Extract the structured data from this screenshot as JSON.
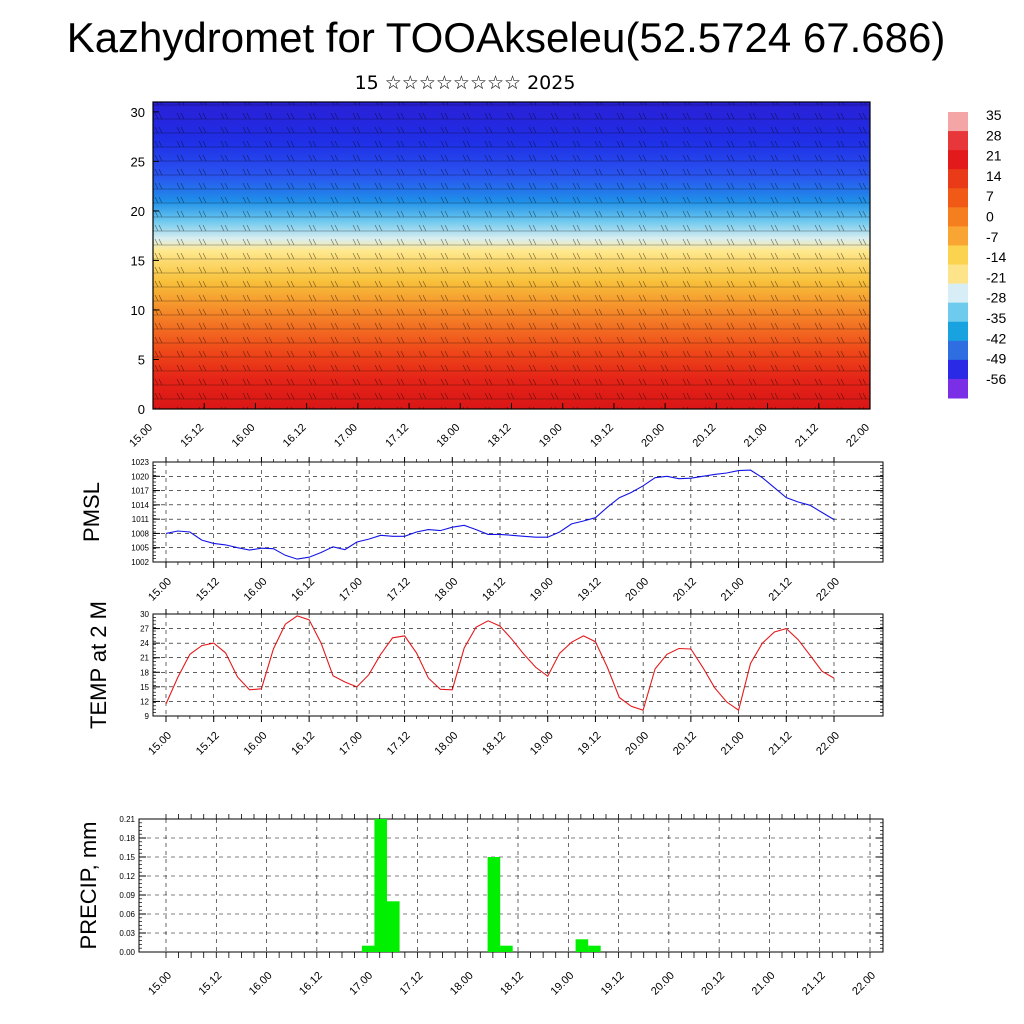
{
  "header": {
    "title": "Kazhydromet for TOOAkseleu(52.5724 67.686)",
    "subtitle": "15 ☆☆☆☆☆☆☆☆ 2025"
  },
  "colorbar": {
    "labels": [
      "35",
      "28",
      "21",
      "14",
      "7",
      "0",
      "-7",
      "-14",
      "-21",
      "-28",
      "-35",
      "-42",
      "-49",
      "-56"
    ],
    "colors_top_to_bottom": [
      "#f4a6a6",
      "#e8373a",
      "#e31a1c",
      "#ea3b18",
      "#f05a16",
      "#f57f1f",
      "#f9a533",
      "#fbd34f",
      "#fde48a",
      "#d7eef6",
      "#6fcbed",
      "#18a2df",
      "#2e6ee0",
      "#2a2ae6",
      "#7a2ee6"
    ]
  },
  "chart_data": [
    {
      "type": "heatmap",
      "description_source": "cross-section temperature with wind barbs",
      "x_tick_labels": [
        "15.00",
        "15.12",
        "16.00",
        "16.12",
        "17.00",
        "17.12",
        "18.00",
        "18.12",
        "19.00",
        "19.12",
        "20.00",
        "20.12",
        "21.00",
        "21.12",
        "22.00"
      ],
      "y_tick_labels": [
        "0",
        "5",
        "10",
        "15",
        "20",
        "25",
        "30"
      ],
      "ylim": [
        0,
        31
      ],
      "color_levels_top_to_bottom": [
        {
          "level": 31,
          "color": "#2a1fd6"
        },
        {
          "level": 27,
          "color": "#1f2fe6"
        },
        {
          "level": 23.5,
          "color": "#2a55f0"
        },
        {
          "level": 21,
          "color": "#1f8fe8"
        },
        {
          "level": 19,
          "color": "#6cc8ef"
        },
        {
          "level": 17.2,
          "color": "#d9eef0"
        },
        {
          "level": 16,
          "color": "#ffe98f"
        },
        {
          "level": 13,
          "color": "#f8c23c"
        },
        {
          "level": 10,
          "color": "#f58c2a"
        },
        {
          "level": 6,
          "color": "#ef4a19"
        },
        {
          "level": 3,
          "color": "#e52418"
        },
        {
          "level": 0,
          "color": "#d91616"
        }
      ]
    },
    {
      "type": "line",
      "ylabel": "PMSL",
      "y_tick_labels": [
        "1023",
        "1020",
        "1017",
        "1014",
        "1011",
        "1008",
        "1005",
        "1002"
      ],
      "ylim": [
        1002,
        1023
      ],
      "x_tick_labels": [
        "15.00",
        "15.12",
        "16.00",
        "16.12",
        "17.00",
        "17.12",
        "18.00",
        "18.12",
        "19.00",
        "19.12",
        "20.00",
        "20.12",
        "21.00",
        "21.12",
        "22.00"
      ],
      "line_color": "#1414e6",
      "values": [
        1008,
        1008.5,
        1008.3,
        1006.6,
        1005.9,
        1005.6,
        1005,
        1004.5,
        1004.9,
        1004.8,
        1003.4,
        1002.6,
        1003,
        1004,
        1005.2,
        1004.6,
        1006.2,
        1006.8,
        1007.6,
        1007.4,
        1007.4,
        1008.3,
        1008.8,
        1008.6,
        1009.3,
        1009.7,
        1008.8,
        1007.8,
        1007.8,
        1007.6,
        1007.4,
        1007.2,
        1007.2,
        1008.3,
        1010,
        1010.6,
        1011.3,
        1013.5,
        1015.5,
        1016.6,
        1018,
        1019.7,
        1020,
        1019.5,
        1019.6,
        1020,
        1020.4,
        1020.7,
        1021.2,
        1021.3,
        1019.7,
        1017.6,
        1015.5,
        1014.6,
        1013.9,
        1012.4,
        1010.9
      ]
    },
    {
      "type": "line",
      "ylabel": "TEMP at 2 M",
      "y_tick_labels": [
        "30",
        "27",
        "24",
        "21",
        "18",
        "15",
        "12",
        "9"
      ],
      "ylim": [
        9,
        30
      ],
      "x_tick_labels": [
        "15.00",
        "15.12",
        "16.00",
        "16.12",
        "17.00",
        "17.12",
        "18.00",
        "18.12",
        "19.00",
        "19.12",
        "20.00",
        "20.12",
        "21.00",
        "21.12",
        "22.00"
      ],
      "line_color": "#e31a1c",
      "values": [
        11.5,
        17,
        21.7,
        23.5,
        24,
        22,
        17,
        14.4,
        14.6,
        22.8,
        27.9,
        29.6,
        28.8,
        24,
        17.3,
        16,
        15,
        17.5,
        21.7,
        25.1,
        25.5,
        22,
        16.8,
        14.5,
        14.4,
        23,
        27.3,
        28.6,
        27.5,
        24.8,
        21.7,
        19,
        17.2,
        21.9,
        24.2,
        25.5,
        24.3,
        19,
        12.8,
        11,
        10.2,
        18.7,
        21.7,
        22.9,
        22.8,
        19,
        14.8,
        11.9,
        10.2,
        19.8,
        24,
        26.3,
        27,
        24.7,
        21.5,
        18.2,
        16.8
      ]
    },
    {
      "type": "bar",
      "ylabel": "PRECIP, mm",
      "y_tick_labels": [
        "0.21",
        "0.18",
        "0.15",
        "0.12",
        "0.09",
        "0.06",
        "0.03",
        "0.00"
      ],
      "ylim": [
        0,
        0.21
      ],
      "x_tick_labels": [
        "15.00",
        "15.12",
        "16.00",
        "16.12",
        "17.00",
        "17.12",
        "18.00",
        "18.12",
        "19.00",
        "19.12",
        "20.00",
        "20.12",
        "21.00",
        "21.12",
        "22.00"
      ],
      "bar_color": "#00f000",
      "bars": [
        {
          "step": 16,
          "value": 0.01
        },
        {
          "step": 17,
          "value": 0.21
        },
        {
          "step": 18,
          "value": 0.08
        },
        {
          "step": 26,
          "value": 0.15
        },
        {
          "step": 27,
          "value": 0.01
        },
        {
          "step": 33,
          "value": 0.02
        },
        {
          "step": 34,
          "value": 0.01
        }
      ],
      "steps_total": 57
    }
  ]
}
